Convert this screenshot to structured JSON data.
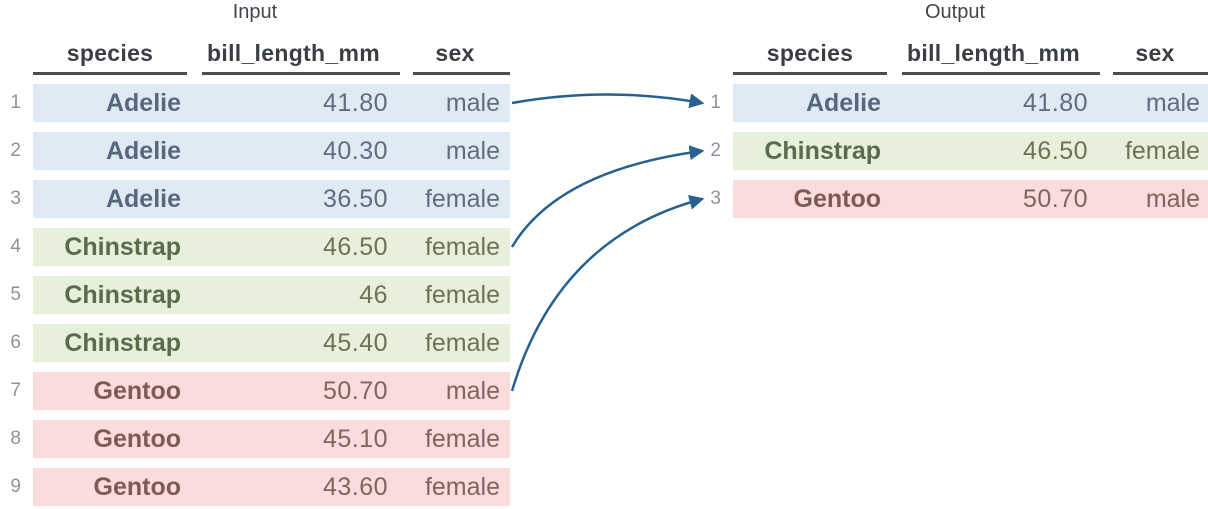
{
  "page": {
    "background": "#ffffff"
  },
  "colors": {
    "arrow": "#28618f",
    "header_text": "#3b3e43",
    "underline": "#4d4d4d",
    "index_text": "#8d939a",
    "title_text": "#41454b"
  },
  "groups": {
    "adelie": {
      "row_bg": "#e0eaf5",
      "species_text": "#57687c",
      "cell_text": "#606e7c"
    },
    "chinstrap": {
      "row_bg": "#e6f0da",
      "species_text": "#5c6b4b",
      "cell_text": "#6a7458"
    },
    "gentoo": {
      "row_bg": "#f9dcdb",
      "species_text": "#7d5a57",
      "cell_text": "#7f6562"
    }
  },
  "input_table": {
    "title": "Input",
    "columns": [
      "species",
      "bill_length_mm",
      "sex"
    ],
    "rows": [
      {
        "index": "1",
        "species": "Adelie",
        "bill_length_mm": "41.80",
        "sex": "male",
        "group": "adelie"
      },
      {
        "index": "2",
        "species": "Adelie",
        "bill_length_mm": "40.30",
        "sex": "male",
        "group": "adelie"
      },
      {
        "index": "3",
        "species": "Adelie",
        "bill_length_mm": "36.50",
        "sex": "female",
        "group": "adelie"
      },
      {
        "index": "4",
        "species": "Chinstrap",
        "bill_length_mm": "46.50",
        "sex": "female",
        "group": "chinstrap"
      },
      {
        "index": "5",
        "species": "Chinstrap",
        "bill_length_mm": "46",
        "sex": "female",
        "group": "chinstrap"
      },
      {
        "index": "6",
        "species": "Chinstrap",
        "bill_length_mm": "45.40",
        "sex": "female",
        "group": "chinstrap"
      },
      {
        "index": "7",
        "species": "Gentoo",
        "bill_length_mm": "50.70",
        "sex": "male",
        "group": "gentoo"
      },
      {
        "index": "8",
        "species": "Gentoo",
        "bill_length_mm": "45.10",
        "sex": "female",
        "group": "gentoo"
      },
      {
        "index": "9",
        "species": "Gentoo",
        "bill_length_mm": "43.60",
        "sex": "female",
        "group": "gentoo"
      }
    ]
  },
  "output_table": {
    "title": "Output",
    "columns": [
      "species",
      "bill_length_mm",
      "sex"
    ],
    "rows": [
      {
        "index": "1",
        "species": "Adelie",
        "bill_length_mm": "41.80",
        "sex": "male",
        "group": "adelie"
      },
      {
        "index": "2",
        "species": "Chinstrap",
        "bill_length_mm": "46.50",
        "sex": "female",
        "group": "chinstrap"
      },
      {
        "index": "3",
        "species": "Gentoo",
        "bill_length_mm": "50.70",
        "sex": "male",
        "group": "gentoo"
      }
    ]
  },
  "mappings": [
    {
      "from_input_row": 1,
      "to_output_row": 1
    },
    {
      "from_input_row": 4,
      "to_output_row": 2
    },
    {
      "from_input_row": 7,
      "to_output_row": 3
    }
  ]
}
